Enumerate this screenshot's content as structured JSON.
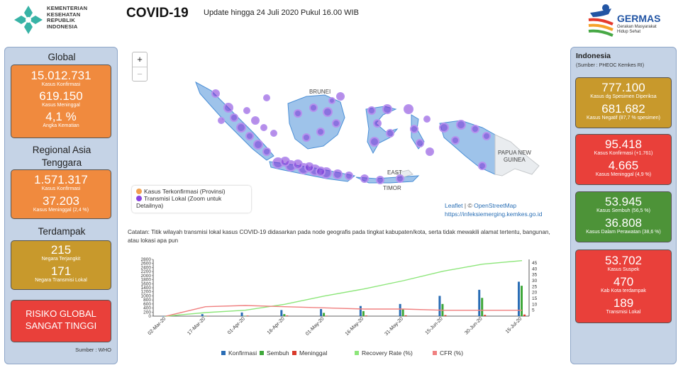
{
  "header": {
    "org_lines": [
      "KEMENTERIAN",
      "KESEHATAN",
      "REPUBLIK",
      "INDONESIA"
    ],
    "title": "COVID-19",
    "update": "Update hingga 24 Juli 2020 Pukul 16.00 WIB",
    "germas": "GERMAS",
    "germas_sub": "Gerakan Masyarakat Hidup Sehat"
  },
  "global": {
    "title": "Global",
    "confirmed": "15.012.731",
    "confirmed_label": "Kasus Konfirmasi",
    "deaths": "619.150",
    "deaths_label": "Kasus Meninggal",
    "cfr": "4,1 %",
    "cfr_label": "Angka Kematian"
  },
  "sea": {
    "title": "Regional Asia Tenggara",
    "confirmed": "1.571.317",
    "confirmed_label": "Kasus Konfirmasi",
    "deaths": "37.203",
    "deaths_label": "Kasus Meninggal (2,4 %)"
  },
  "affected": {
    "title": "Terdampak",
    "countries": "215",
    "countries_label": "Negara Terjangkit",
    "local": "171",
    "local_label": "Negara Transmisi Lokal"
  },
  "risk": {
    "line1": "RISIKO GLOBAL",
    "line2": "SANGAT TINGGI"
  },
  "source_who": "Sumber : WHO",
  "indonesia": {
    "title": "Indonesia",
    "source": "(Sumber : PHEOC Kemkes RI)",
    "specimens": "777.100",
    "specimens_label": "Kasus dg Spesimen Diperiksa",
    "negative": "681.682",
    "negative_label": "Kasus Negatif (87,7 % spesimen)",
    "confirmed": "95.418",
    "confirmed_label": "Kasus Konfirmasi (+1.761)",
    "deaths": "4.665",
    "deaths_label": "Kasus Meninggal (4,9 %)",
    "recovered": "53.945",
    "recovered_label": "Kasus Sembuh (56,5 %)",
    "treated": "36.808",
    "treated_label": "Kasus Dalam Perawatan (38,6 %)",
    "suspect": "53.702",
    "suspect_label": "Kasus Suspek",
    "districts": "470",
    "districts_label": "Kab Kota terdampak",
    "local": "189",
    "local_label": "Transmisi Lokal"
  },
  "map": {
    "zoom_in": "+",
    "zoom_out": "−",
    "labels": {
      "brunei": "BRUNEI",
      "papua": "PAPUA NEW",
      "papua2": "GUINEA",
      "timor": "EAST",
      "timor2": "TIMOR"
    },
    "legend": {
      "provinsi": "Kasus Terkonfirmasi (Provinsi)",
      "lokal": "Transmisi Lokal (Zoom untuk",
      "lokal2": "Detailnya)"
    },
    "attribution_leaflet": "Leaflet",
    "attribution_sep": " | © ",
    "attribution_osm": "OpenStreetMap",
    "attribution_url": "https://infeksiemerging.kemkes.go.id"
  },
  "note": "Catatan: Titik wilayah transmisi lokal kasus COVID-19 didasarkan pada node geografis pada tingkat kabupaten/kota, serta tidak mewakili alamat tertentu, bangunan, atau lokasi apa pun",
  "chart_data": {
    "type": "bar",
    "categories": [
      "02-Mar-20",
      "17-Mar-20",
      "01-Apr-20",
      "16-Apr-20",
      "01-May-20",
      "16-May-20",
      "31-May-20",
      "15-Jun-20",
      "30-Jun-20",
      "15-Jul-20"
    ],
    "y_left_ticks": [
      "2800",
      "2600",
      "2400",
      "2200",
      "2000",
      "1800",
      "1600",
      "1400",
      "1200",
      "1000",
      "800",
      "600",
      "400",
      "200",
      "0"
    ],
    "y_right_ticks": [
      "45",
      "40",
      "35",
      "30",
      "25",
      "20",
      "15",
      "10",
      "5"
    ],
    "ylim_left": [
      0,
      2800
    ],
    "ylim_right": [
      0,
      48
    ],
    "legend": [
      "Konfirmasi",
      "Sembuh",
      "Meninggal",
      "Recovery Rate (%)",
      "CFR (%)"
    ],
    "colors": {
      "konfirmasi": "#2a6db5",
      "sembuh": "#3fa83a",
      "meninggal": "#d93a2b",
      "recovery": "#8de67a",
      "cfr": "#f08080"
    },
    "series": [
      {
        "name": "Konfirmasi",
        "values": [
          2,
          100,
          180,
          300,
          350,
          500,
          600,
          1000,
          1300,
          1700
        ]
      },
      {
        "name": "Sembuh",
        "values": [
          0,
          5,
          15,
          100,
          160,
          250,
          350,
          600,
          900,
          1500
        ]
      },
      {
        "name": "Meninggal",
        "values": [
          0,
          10,
          25,
          30,
          20,
          30,
          40,
          50,
          60,
          80
        ]
      },
      {
        "name": "Recovery Rate (%)",
        "values": [
          0,
          3,
          5,
          10,
          17,
          23,
          30,
          38,
          44,
          47
        ]
      },
      {
        "name": "CFR (%)",
        "values": [
          0,
          8,
          9,
          8,
          7,
          6,
          6,
          5,
          5,
          5
        ]
      }
    ]
  }
}
